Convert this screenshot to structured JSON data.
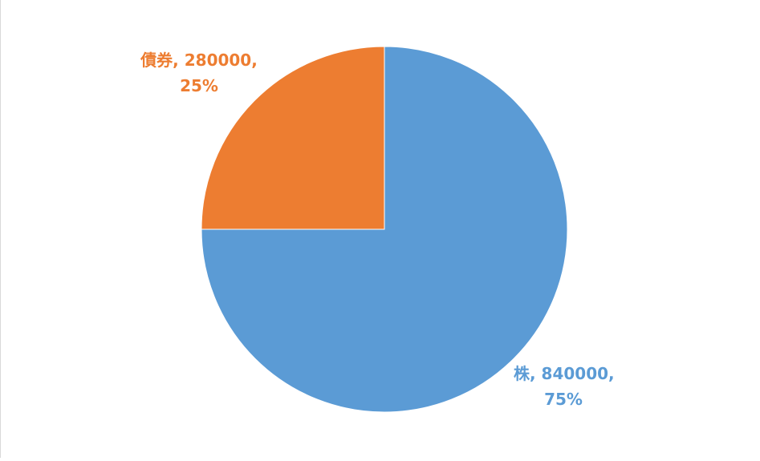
{
  "chart_data": {
    "type": "pie",
    "title": "",
    "series": [
      {
        "values": [
          840000,
          280000
        ],
        "labels": [
          "株",
          "債券"
        ],
        "percent_labels": [
          "75%",
          "25%"
        ],
        "colors": [
          "#5B9BD5",
          "#ED7D31"
        ]
      }
    ],
    "data_labels": [
      {
        "line1": "株, 840000,",
        "line2": "75%",
        "color": "#5B9BD5"
      },
      {
        "line1": "債券, 280000,",
        "line2": "25%",
        "color": "#ED7D31"
      }
    ],
    "start_angle_deg": 0,
    "direction": "clockwise",
    "legend": "none"
  }
}
